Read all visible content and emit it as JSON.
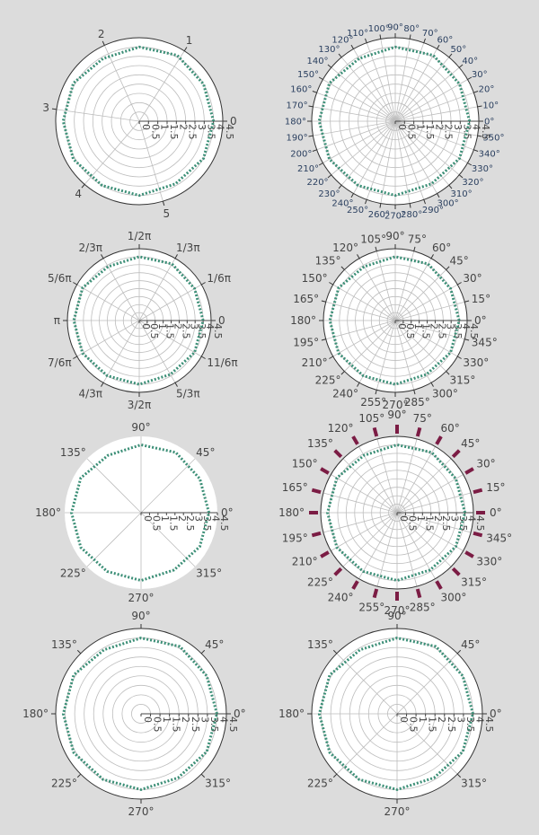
{
  "page": {
    "background": "#dcdcdc"
  },
  "chart_data": [
    {
      "type": "polar-line",
      "panel": "row1-left",
      "angular_unit": "radians",
      "angular_tick_labels": [
        "0",
        "1",
        "2",
        "3",
        "4",
        "5"
      ],
      "radial_range": [
        0,
        4.5
      ],
      "radial_tick_labels": [
        "0",
        "0.5",
        "1",
        "1.5",
        "2",
        "2.5",
        "3",
        "3.5",
        "4",
        "4.5"
      ],
      "series": [
        {
          "theta_deg": [
            0,
            30,
            60,
            90,
            120,
            150,
            180,
            210,
            240,
            270,
            300,
            330,
            360
          ],
          "r": [
            4,
            4,
            4.1,
            4,
            3.9,
            4.1,
            4.1,
            4.1,
            4,
            4,
            3.9,
            4,
            4
          ],
          "color": "#3c8f77",
          "style": "dotted"
        }
      ],
      "grid": true,
      "background": "#ffffff"
    },
    {
      "type": "polar-line",
      "panel": "row1-right",
      "angular_unit": "degrees",
      "angular_tick_labels": [
        "0°",
        "10°",
        "20°",
        "30°",
        "40°",
        "50°",
        "60°",
        "70°",
        "80°",
        "90°",
        "100°",
        "110°",
        "120°",
        "130°",
        "140°",
        "150°",
        "160°",
        "170°",
        "180°",
        "190°",
        "200°",
        "210°",
        "220°",
        "230°",
        "240°",
        "250°",
        "260°",
        "270°",
        "280°",
        "290°",
        "300°",
        "310°",
        "320°",
        "330°",
        "340°",
        "350°"
      ],
      "radial_range": [
        0,
        4.5
      ],
      "radial_tick_labels": [
        "0",
        "0.5",
        "1",
        "1.5",
        "2",
        "2.5",
        "3",
        "3.5",
        "4",
        "4.5"
      ],
      "series": [
        {
          "theta_deg": [
            0,
            30,
            60,
            90,
            120,
            150,
            180,
            210,
            240,
            270,
            300,
            330,
            360
          ],
          "r": [
            4,
            4,
            4.1,
            4,
            3.9,
            4.1,
            4.1,
            4.1,
            4,
            4,
            3.9,
            4,
            4
          ],
          "color": "#3c8f77",
          "style": "dotted"
        }
      ],
      "grid": true,
      "background": "#ffffff"
    },
    {
      "type": "polar-line",
      "panel": "row2-left",
      "angular_unit": "pi-fractions",
      "angular_tick_labels": [
        "0",
        "1/6π",
        "1/3π",
        "1/2π",
        "2/3π",
        "5/6π",
        "π",
        "7/6π",
        "4/3π",
        "3/2π",
        "5/3π",
        "11/6π"
      ],
      "radial_range": [
        0,
        4.5
      ],
      "radial_tick_labels": [
        "0",
        "0.5",
        "1",
        "1.5",
        "2",
        "2.5",
        "3",
        "3.5",
        "4",
        "4.5"
      ],
      "series": [
        {
          "theta_deg": [
            0,
            30,
            60,
            90,
            120,
            150,
            180,
            210,
            240,
            270,
            300,
            330,
            360
          ],
          "r": [
            4,
            4,
            4.1,
            4,
            3.9,
            4.1,
            4.1,
            4.1,
            4,
            4,
            3.9,
            4,
            4
          ],
          "color": "#3c8f77",
          "style": "dotted"
        }
      ],
      "grid": true,
      "background": "#ffffff"
    },
    {
      "type": "polar-line",
      "panel": "row2-right",
      "angular_unit": "degrees",
      "angular_tick_labels": [
        "0°",
        "15°",
        "30°",
        "45°",
        "60°",
        "75°",
        "90°",
        "105°",
        "120°",
        "135°",
        "150°",
        "165°",
        "180°",
        "195°",
        "210°",
        "225°",
        "240°",
        "255°",
        "270°",
        "285°",
        "300°",
        "315°",
        "330°",
        "345°"
      ],
      "radial_range": [
        0,
        4.5
      ],
      "radial_tick_labels": [
        "0",
        "0.5",
        "1",
        "1.5",
        "2",
        "2.5",
        "3",
        "3.5",
        "4",
        "4.5"
      ],
      "series": [
        {
          "theta_deg": [
            0,
            30,
            60,
            90,
            120,
            150,
            180,
            210,
            240,
            270,
            300,
            330,
            360
          ],
          "r": [
            4,
            4,
            4.1,
            4,
            3.9,
            4.1,
            4.1,
            4.1,
            4,
            4,
            3.9,
            4,
            4
          ],
          "color": "#3c8f77",
          "style": "dotted"
        }
      ],
      "grid": true,
      "background": "#ffffff"
    },
    {
      "type": "polar-line",
      "panel": "row3-left",
      "angular_unit": "degrees",
      "angular_tick_labels": [
        "0°",
        "45°",
        "90°",
        "135°",
        "180°",
        "225°",
        "270°",
        "315°"
      ],
      "radial_range": [
        0,
        4.5
      ],
      "radial_tick_labels": [
        "0",
        "0.5",
        "1",
        "1.5",
        "2",
        "2.5",
        "3",
        "3.5",
        "4",
        "4.5"
      ],
      "series": [
        {
          "theta_deg": [
            0,
            30,
            60,
            90,
            120,
            150,
            180,
            210,
            240,
            270,
            300,
            330,
            360
          ],
          "r": [
            4,
            4,
            4.1,
            4,
            3.9,
            4.1,
            4.1,
            4.1,
            4,
            4,
            3.9,
            4,
            4
          ],
          "color": "#3c8f77",
          "style": "dotted"
        }
      ],
      "grid": "spokes-only",
      "background": "#ffffff"
    },
    {
      "type": "polar-line",
      "panel": "row3-right",
      "angular_unit": "degrees",
      "angular_tick_labels": [
        "0°",
        "15°",
        "30°",
        "45°",
        "60°",
        "75°",
        "90°",
        "105°",
        "120°",
        "135°",
        "150°",
        "165°",
        "180°",
        "195°",
        "210°",
        "225°",
        "240°",
        "255°",
        "270°",
        "285°",
        "300°",
        "315°",
        "330°",
        "345°"
      ],
      "radial_range": [
        0,
        4.5
      ],
      "radial_tick_labels": [
        "0",
        "0.5",
        "1",
        "1.5",
        "2",
        "2.5",
        "3",
        "3.5",
        "4",
        "4.5"
      ],
      "series": [
        {
          "theta_deg": [
            0,
            30,
            60,
            90,
            120,
            150,
            180,
            210,
            240,
            270,
            300,
            330,
            360
          ],
          "r": [
            4,
            4,
            4.1,
            4,
            3.9,
            4.1,
            4.1,
            4.1,
            4,
            4,
            3.9,
            4,
            4
          ],
          "color": "#3c8f77",
          "style": "dotted"
        }
      ],
      "grid": true,
      "background": "#ffffff",
      "tick_color": "#7b1c44"
    },
    {
      "type": "polar-line",
      "panel": "row4-left",
      "angular_unit": "degrees",
      "angular_tick_labels": [
        "0°",
        "45°",
        "90°",
        "135°",
        "180°",
        "225°",
        "270°",
        "315°"
      ],
      "radial_range": [
        0,
        4.5
      ],
      "radial_tick_labels": [
        "0",
        "0.5",
        "1",
        "1.5",
        "2",
        "2.5",
        "3",
        "3.5",
        "4",
        "4.5"
      ],
      "series": [
        {
          "theta_deg": [
            0,
            30,
            60,
            90,
            120,
            150,
            180,
            210,
            240,
            270,
            300,
            330,
            360
          ],
          "r": [
            4,
            4,
            4.1,
            4,
            3.9,
            4.1,
            4.1,
            4.1,
            4,
            4,
            3.9,
            4,
            4
          ],
          "color": "#3c8f77",
          "style": "dotted"
        }
      ],
      "grid": "circles-only",
      "background": "#ffffff"
    },
    {
      "type": "polar-line",
      "panel": "row4-right",
      "angular_unit": "degrees",
      "angular_tick_labels": [
        "0°",
        "45°",
        "90°",
        "135°",
        "180°",
        "225°",
        "270°",
        "315°"
      ],
      "radial_range": [
        0,
        4.5
      ],
      "radial_tick_labels": [
        "0",
        "0.5",
        "1",
        "1.5",
        "2",
        "2.5",
        "3",
        "3.5",
        "4",
        "4.5"
      ],
      "series": [
        {
          "theta_deg": [
            0,
            30,
            60,
            90,
            120,
            150,
            180,
            210,
            240,
            270,
            300,
            330,
            360
          ],
          "r": [
            4,
            4,
            4.1,
            4,
            3.9,
            4.1,
            4.1,
            4.1,
            4,
            4,
            3.9,
            4,
            4
          ],
          "color": "#3c8f77",
          "style": "dotted"
        }
      ],
      "grid": true,
      "background": "#ffffff"
    }
  ]
}
